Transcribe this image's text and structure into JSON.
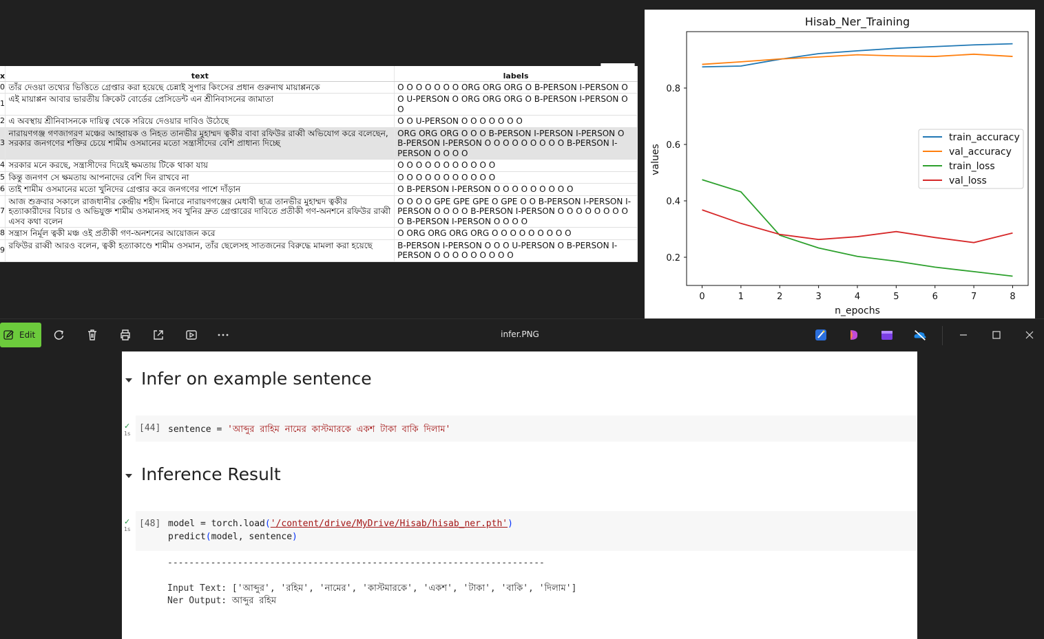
{
  "dataframe": {
    "columns": {
      "index": "x",
      "text": "text",
      "labels": "labels"
    },
    "rows": [
      {
        "idx": "0",
        "text": "তাঁর দেওয়া তথ্যের ভিত্তিতে গ্রেপ্তার করা হয়েছে চেন্নাই সুপার কিংসের প্রধান গুরুনাথ মায়াপ্পনকে",
        "labels": "O O O O O O O ORG ORG ORG O B-PERSON I-PERSON O"
      },
      {
        "idx": "1",
        "text": "এই মায়াপ্পন আবার ভারতীয় ক্রিকেট বোর্ডের প্রেসিডেন্ট এন শ্রীনিবাসনের জামাতা",
        "labels": "O U-PERSON O ORG ORG ORG O B-PERSON I-PERSON O O"
      },
      {
        "idx": "2",
        "text": "এ অবস্থায় শ্রীনিবাসনকে দায়িত্ব থেকে সরিয়ে দেওয়ার দাবিও উঠেছে",
        "labels": "O O U-PERSON O O O O O O O"
      },
      {
        "idx": "3",
        "text": "নারায়ণগঞ্জ গণজাগরণ মঞ্চের আহ্বায়ক ও নিহত তানভীর মুহাম্মদ ত্বকীর বাবা রফিউর রাব্বী অভিযোগ করে বলেছেন, সরকার জনগণের শক্তির চেয়ে শামীম ওসমানের মতো সন্ত্রাসীদের বেশি প্রাধান্য দিচ্ছে",
        "labels": "ORG ORG ORG O O O B-PERSON I-PERSON I-PERSON O B-PERSON I-PERSON O O O O O O O O O B-PERSON I-PERSON O O O O"
      },
      {
        "idx": "4",
        "text": "সরকার মনে করছে, সন্ত্রাসীদের দিয়েই ক্ষমতায় টিকে থাকা যায়",
        "labels": "O O O O O O O O O O O"
      },
      {
        "idx": "5",
        "text": "কিন্তু জনগণ সে ক্ষমতায় আপনাদের বেশি দিন রাখবে না",
        "labels": "O O O O O O O O O O O"
      },
      {
        "idx": "6",
        "text": "তাই শামীম ওসমানের মতো খুনিদের গ্রেপ্তার করে জনগণের পাশে দাঁড়ান",
        "labels": "O B-PERSON I-PERSON O O O O O O O O O"
      },
      {
        "idx": "7",
        "text": "আজ শুক্রবার সকালে রাজধানীর কেন্দ্রীয় শহীদ মিনারে নারায়ণগঞ্জের মেধাবী ছাত্র তানভীর মুহাম্মদ ত্বকীর হত্যাকারীদের বিচার ও অভিযুক্ত শামীম ওসমানসহ সব খুনির দ্রুত গ্রেপ্তারের দাবিতে প্রতীকী গণ-অনশনে রফিউর রাব্বী এসব কথা বলেন",
        "labels": "O O O O GPE GPE GPE O GPE O O B-PERSON I-PERSON I-PERSON O O O O B-PERSON I-PERSON O O O O O O O O O B-PERSON I-PERSON O O O O"
      },
      {
        "idx": "8",
        "text": "সন্ত্রাস নির্মূল ত্বকী মঞ্চ ওই প্রতীকী গণ-অনশনের আয়োজন করে",
        "labels": "O ORG ORG ORG ORG O O O O O O O O O"
      },
      {
        "idx": "9",
        "text": "রফিউর রাব্বী আরও বলেন, ত্বকী হত্যাকাণ্ডে শামীম ওসমান, তাঁর ছেলেসহ সাতজনের বিরুদ্ধে মামলা করা হয়েছে",
        "labels": "B-PERSON I-PERSON O O O U-PERSON O B-PERSON I-PERSON O O O O O O O O O"
      }
    ]
  },
  "chart_data": {
    "type": "line",
    "title": "Hisab_Ner_Training",
    "xlabel": "n_epochs",
    "ylabel": "values",
    "x": [
      0,
      1,
      2,
      3,
      4,
      5,
      6,
      7,
      8
    ],
    "xlim": [
      -0.4,
      8.4
    ],
    "ylim": [
      0.1,
      1.0
    ],
    "yticks": [
      0.2,
      0.4,
      0.6,
      0.8
    ],
    "legend_position": "right",
    "grid": false,
    "series": [
      {
        "name": "train_accuracy",
        "color": "#1f77b4",
        "values": [
          0.875,
          0.878,
          0.902,
          0.922,
          0.932,
          0.941,
          0.947,
          0.953,
          0.957
        ]
      },
      {
        "name": "val_accuracy",
        "color": "#ff7f0e",
        "values": [
          0.884,
          0.893,
          0.903,
          0.91,
          0.918,
          0.914,
          0.912,
          0.92,
          0.912
        ]
      },
      {
        "name": "train_loss",
        "color": "#2ca02c",
        "values": [
          0.475,
          0.432,
          0.278,
          0.233,
          0.203,
          0.186,
          0.165,
          0.149,
          0.133
        ]
      },
      {
        "name": "val_loss",
        "color": "#d62728",
        "values": [
          0.368,
          0.32,
          0.281,
          0.263,
          0.273,
          0.291,
          0.27,
          0.252,
          0.286
        ]
      }
    ]
  },
  "toolbar": {
    "edit_label": "Edit",
    "window_title": "infer.PNG",
    "icons": [
      "rotate-icon",
      "delete-icon",
      "print-icon",
      "share-icon",
      "slideshow-icon",
      "more-icon"
    ],
    "app_icons": [
      "designer-icon",
      "clipchamp-icon",
      "video-editor-icon",
      "onedrive-icon"
    ],
    "window_controls": [
      "minimize-icon",
      "maximize-icon",
      "close-icon"
    ]
  },
  "notebook": {
    "heading1": "Infer on example sentence",
    "heading2": "Inference Result",
    "cell1": {
      "exec_count": "[44]",
      "time": "1s",
      "var": "sentence",
      "op": " = ",
      "string": "'আব্দুর রাহিম নামের কাস্টমারকে একশ টাকা বাকি দিলাম'"
    },
    "cell2": {
      "exec_count": "[48]",
      "time": "1s",
      "line1_pre": "model = torch.load",
      "line1_path": "'/content/drive/MyDrive/Hisab/hisab_ner.pth'",
      "line2_pre": "predict",
      "line2_args": "model, sentence"
    },
    "output": {
      "separator": "----------------------------------------------------------------------",
      "input_line": "Input Text: ['আব্দুর', 'রহিম', 'নামের', 'কাস্টমারকে', 'একশ', 'টাকা', 'বাকি', 'দিলাম']",
      "ner_line": "Ner Output: আব্দুর রহিম"
    }
  }
}
